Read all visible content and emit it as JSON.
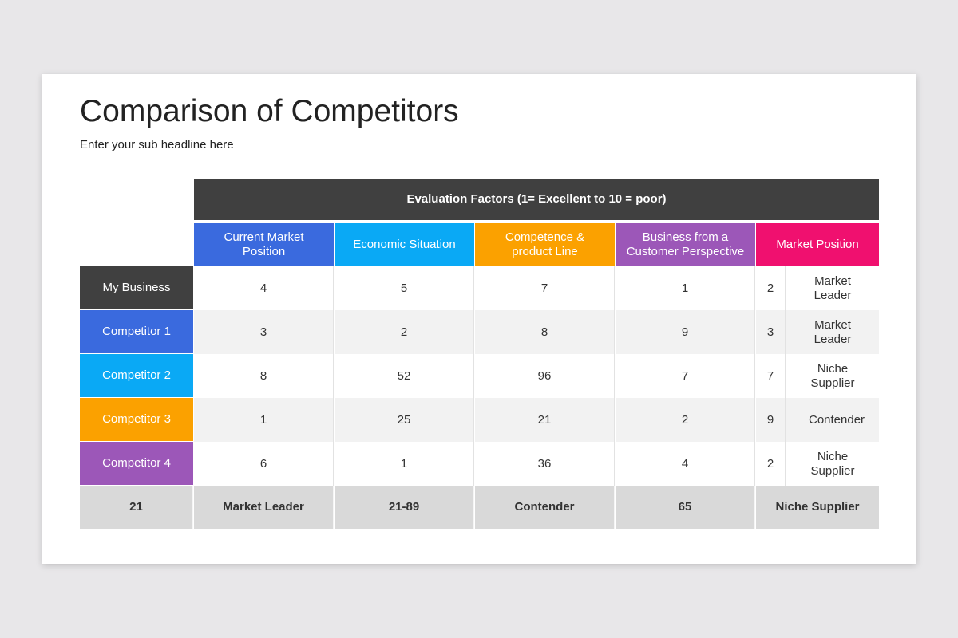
{
  "header": {
    "title": "Comparison of Competitors",
    "subtitle": "Enter your sub headline here"
  },
  "table": {
    "group_header": "Evaluation Factors (1= Excellent to 10 = poor)",
    "columns": [
      "Current Market Position",
      "Economic Situation",
      "Competence & product Line",
      "Business from a Customer Perspective",
      "Market Position"
    ],
    "rows": [
      {
        "label": "My Business",
        "values": [
          4,
          5,
          7,
          1
        ],
        "position_rank": 2,
        "position_label": "Market Leader"
      },
      {
        "label": "Competitor 1",
        "values": [
          3,
          2,
          8,
          9
        ],
        "position_rank": 3,
        "position_label": "Market Leader"
      },
      {
        "label": "Competitor 2",
        "values": [
          8,
          52,
          96,
          7
        ],
        "position_rank": 7,
        "position_label": "Niche Supplier"
      },
      {
        "label": "Competitor 3",
        "values": [
          1,
          25,
          21,
          2
        ],
        "position_rank": 9,
        "position_label": "Contender"
      },
      {
        "label": "Competitor 4",
        "values": [
          6,
          1,
          36,
          4
        ],
        "position_rank": 2,
        "position_label": "Niche Supplier"
      }
    ],
    "footer": [
      "21",
      "Market Leader",
      "21-89",
      "Contender",
      "65",
      "Niche Supplier"
    ]
  }
}
